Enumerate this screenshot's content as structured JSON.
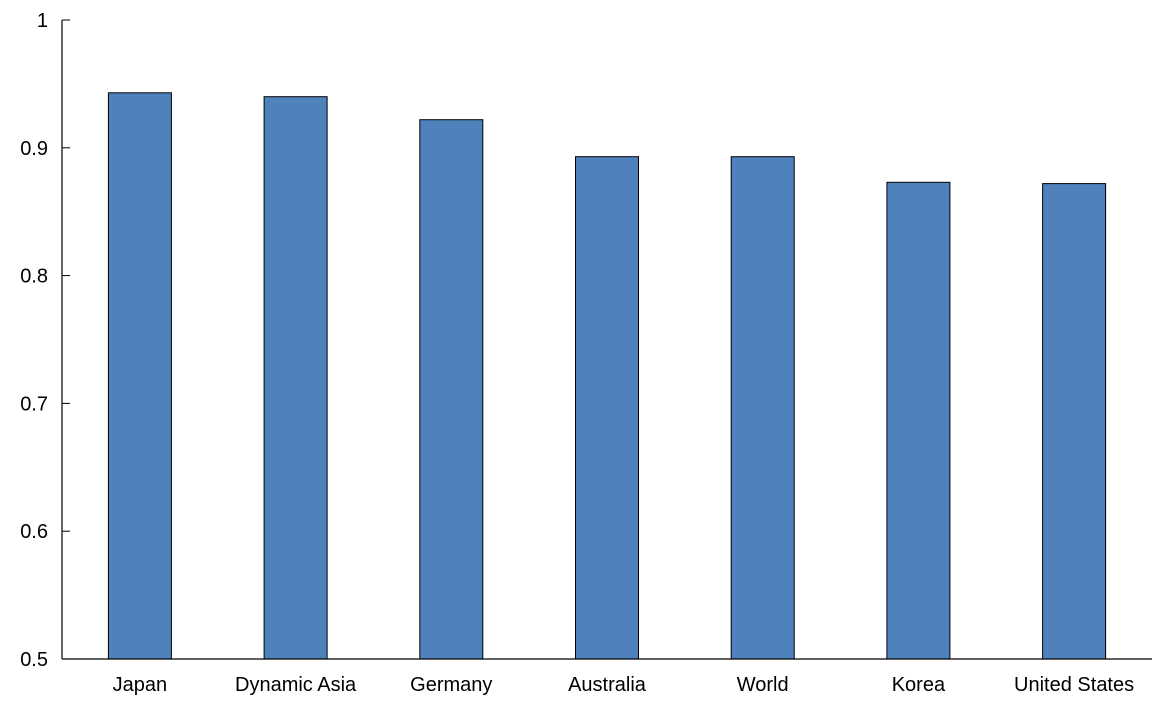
{
  "chart_data": {
    "type": "bar",
    "title": "",
    "xlabel": "",
    "ylabel": "",
    "categories": [
      "Japan",
      "Dynamic Asia",
      "Germany",
      "Australia",
      "World",
      "Korea",
      "United States"
    ],
    "values": [
      0.943,
      0.94,
      0.922,
      0.893,
      0.893,
      0.873,
      0.872
    ],
    "ylim": [
      0.5,
      1.0
    ],
    "yticks": [
      0.5,
      0.6,
      0.7,
      0.8,
      0.9,
      1.0
    ],
    "ytick_labels": [
      "0.5",
      "0.6",
      "0.7",
      "0.8",
      "0.9",
      "1"
    ],
    "grid": false,
    "legend": "none",
    "colors": {
      "bar_fill": "#4F81BD",
      "bar_stroke": "#000000",
      "axis": "#000000"
    }
  }
}
